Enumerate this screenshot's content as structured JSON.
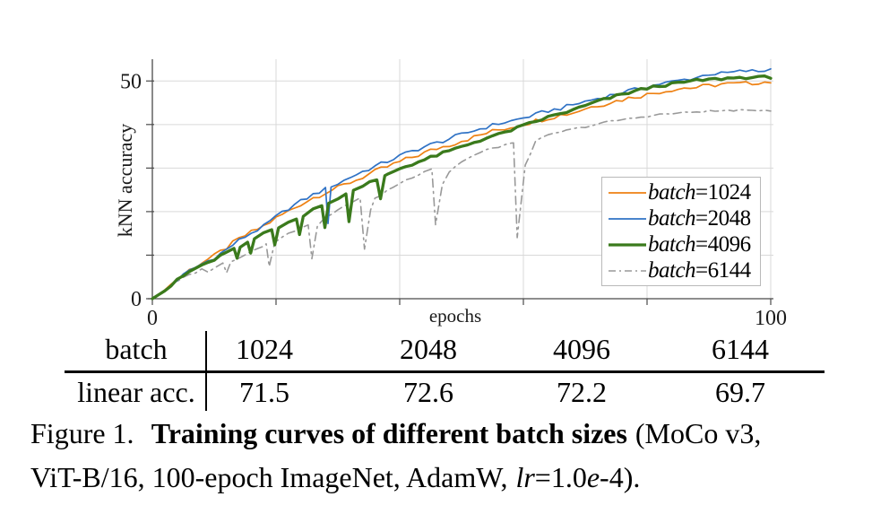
{
  "figure_caption": {
    "label": "Figure 1.",
    "title_bold": "Training curves of different batch sizes",
    "after_title": "(MoCo v3,",
    "line2_prefix": "ViT-B/16, 100-epoch ImageNet, AdamW,",
    "lr_var": "lr",
    "lr_value": "=1.0",
    "e_var": "e",
    "line2_suffix": "-4)."
  },
  "results_table": {
    "header_label": "batch",
    "row_label": "linear acc.",
    "batch_sizes": [
      "1024",
      "2048",
      "4096",
      "6144"
    ],
    "linear_accuracies": [
      "71.5",
      "72.6",
      "72.2",
      "69.7"
    ]
  },
  "chart_data": {
    "type": "line",
    "title": "",
    "xlabel": "epochs",
    "ylabel": "kNN accuracy",
    "xlim": [
      0,
      100
    ],
    "ylim": [
      0,
      55
    ],
    "x_ticks": [
      0,
      20,
      40,
      60,
      80,
      100
    ],
    "x_tick_labels": {
      "0": "0",
      "100": "100"
    },
    "y_ticks": [
      0,
      10,
      20,
      30,
      40,
      50
    ],
    "y_tick_labels": {
      "0": "0",
      "50": "50"
    },
    "grid": true,
    "grid_color": "#d9d9d9",
    "axis_color": "#4a4a4a",
    "legend_position": "lower right",
    "series": [
      {
        "id": "batch-1024",
        "name": "batch=1024",
        "legend_math": "batch",
        "legend_rest": "=1024",
        "color": "#ee8113",
        "line_width": 1.7,
        "dash": null,
        "noise": 0.5,
        "final_knn": 49.8,
        "points": [
          [
            0,
            0
          ],
          [
            2,
            2
          ],
          [
            4,
            4.5
          ],
          [
            6,
            6.6
          ],
          [
            8,
            8.3
          ],
          [
            10,
            9.8
          ],
          [
            12,
            11.7
          ],
          [
            14,
            13.7
          ],
          [
            16,
            15.3
          ],
          [
            18,
            16.7
          ],
          [
            20,
            18.5
          ],
          [
            22,
            20.1
          ],
          [
            24,
            21.7
          ],
          [
            26,
            23.2
          ],
          [
            28,
            24.4
          ],
          [
            30,
            25.5
          ],
          [
            32,
            26.7
          ],
          [
            34,
            27.9
          ],
          [
            36,
            29.2
          ],
          [
            38,
            30.3
          ],
          [
            40,
            31.4
          ],
          [
            42,
            32.5
          ],
          [
            44,
            33.5
          ],
          [
            46,
            34.5
          ],
          [
            48,
            35.3
          ],
          [
            50,
            36.3
          ],
          [
            52,
            37.1
          ],
          [
            54,
            38
          ],
          [
            56,
            38.8
          ],
          [
            58,
            39.4
          ],
          [
            60,
            40.1
          ],
          [
            62,
            40.9
          ],
          [
            64,
            41.5
          ],
          [
            66,
            42.2
          ],
          [
            68,
            42.7
          ],
          [
            70,
            43.7
          ],
          [
            72,
            44.4
          ],
          [
            74,
            45.1
          ],
          [
            76,
            45.7
          ],
          [
            78,
            46.4
          ],
          [
            80,
            46.9
          ],
          [
            82,
            47.5
          ],
          [
            84,
            48
          ],
          [
            86,
            48.4
          ],
          [
            88,
            48.5
          ],
          [
            90,
            48.9
          ],
          [
            92,
            49.3
          ],
          [
            94,
            49.3
          ],
          [
            96,
            49.4
          ],
          [
            98,
            49.7
          ],
          [
            100,
            49.8
          ]
        ]
      },
      {
        "id": "batch-2048",
        "name": "batch=2048",
        "legend_math": "batch",
        "legend_rest": "=2048",
        "color": "#2f72c5",
        "line_width": 1.7,
        "dash": null,
        "noise": 0.42,
        "final_knn": 52.7,
        "points": [
          [
            0,
            0
          ],
          [
            2,
            1.9
          ],
          [
            4,
            4.3
          ],
          [
            6,
            6.4
          ],
          [
            8,
            8
          ],
          [
            10,
            9.4
          ],
          [
            12,
            11.3
          ],
          [
            14,
            13.4
          ],
          [
            16,
            15.1
          ],
          [
            18,
            16.6
          ],
          [
            20,
            18.8
          ],
          [
            22,
            20.7
          ],
          [
            24,
            22.4
          ],
          [
            26,
            23.9
          ],
          [
            28,
            25.2
          ],
          [
            28.4,
            17.2
          ],
          [
            28.9,
            25.5
          ],
          [
            30,
            26.4
          ],
          [
            32,
            27.9
          ],
          [
            34,
            29.2
          ],
          [
            36,
            30.4
          ],
          [
            38,
            31.5
          ],
          [
            40,
            32.8
          ],
          [
            42,
            33.9
          ],
          [
            44,
            34.9
          ],
          [
            46,
            35.8
          ],
          [
            48,
            36.7
          ],
          [
            50,
            37.7
          ],
          [
            52,
            38.6
          ],
          [
            54,
            39.4
          ],
          [
            56,
            40.2
          ],
          [
            58,
            40.8
          ],
          [
            60,
            41.5
          ],
          [
            62,
            42.3
          ],
          [
            64,
            43.1
          ],
          [
            66,
            43.7
          ],
          [
            68,
            44.5
          ],
          [
            70,
            45.3
          ],
          [
            72,
            46
          ],
          [
            74,
            46.7
          ],
          [
            76,
            47.4
          ],
          [
            78,
            48
          ],
          [
            80,
            48.7
          ],
          [
            82,
            49.3
          ],
          [
            84,
            49.8
          ],
          [
            86,
            50.3
          ],
          [
            88,
            50.8
          ],
          [
            90,
            51.6
          ],
          [
            92,
            51.7
          ],
          [
            94,
            52
          ],
          [
            96,
            52.3
          ],
          [
            98,
            52.2
          ],
          [
            100,
            52.7
          ]
        ]
      },
      {
        "id": "batch-4096",
        "name": "batch=4096",
        "legend_math": "batch",
        "legend_rest": "=4096",
        "color": "#3a7a1c",
        "line_width": 3.3,
        "dash": null,
        "noise": 0.3,
        "final_knn": 50.9,
        "points": [
          [
            0,
            0
          ],
          [
            2,
            1.8
          ],
          [
            4,
            4.2
          ],
          [
            6,
            6.2
          ],
          [
            8,
            7.7
          ],
          [
            10,
            8.9
          ],
          [
            12,
            10.5
          ],
          [
            13.2,
            11.4
          ],
          [
            13.7,
            9
          ],
          [
            14.2,
            12.1
          ],
          [
            15.4,
            13.2
          ],
          [
            15.9,
            10.2
          ],
          [
            16.5,
            13.6
          ],
          [
            18,
            14.9
          ],
          [
            19.3,
            15.7
          ],
          [
            19.8,
            12.1
          ],
          [
            20.4,
            16.3
          ],
          [
            22,
            17.8
          ],
          [
            23.3,
            18.5
          ],
          [
            23.8,
            14.7
          ],
          [
            24.4,
            19.2
          ],
          [
            26,
            20.6
          ],
          [
            27.4,
            21.3
          ],
          [
            27.9,
            16.5
          ],
          [
            28.5,
            21.9
          ],
          [
            30,
            23.2
          ],
          [
            31.3,
            24
          ],
          [
            31.8,
            17.9
          ],
          [
            32.5,
            24.7
          ],
          [
            34,
            26
          ],
          [
            36.3,
            27.5
          ],
          [
            36.9,
            22.7
          ],
          [
            37.6,
            28.1
          ],
          [
            38,
            28.6
          ],
          [
            40,
            29.9
          ],
          [
            42,
            30.9
          ],
          [
            44,
            31.9
          ],
          [
            46,
            32.9
          ],
          [
            48,
            33.9
          ],
          [
            50,
            34.9
          ],
          [
            52,
            35.9
          ],
          [
            54,
            36.9
          ],
          [
            56,
            37.7
          ],
          [
            58,
            38.7
          ],
          [
            60,
            39.7
          ],
          [
            62,
            40.7
          ],
          [
            64,
            41.7
          ],
          [
            66,
            42.5
          ],
          [
            68,
            43.3
          ],
          [
            70,
            44.3
          ],
          [
            72,
            45.3
          ],
          [
            74,
            46.1
          ],
          [
            76,
            46.9
          ],
          [
            78,
            47.7
          ],
          [
            80,
            48.3
          ],
          [
            82,
            48.9
          ],
          [
            84,
            49.3
          ],
          [
            86,
            49.7
          ],
          [
            88,
            50.1
          ],
          [
            90,
            50.3
          ],
          [
            92,
            50.5
          ],
          [
            94,
            50.7
          ],
          [
            96,
            50.8
          ],
          [
            98,
            50.8
          ],
          [
            100,
            50.9
          ]
        ]
      },
      {
        "id": "batch-6144",
        "name": "batch=6144",
        "legend_math": "batch",
        "legend_rest": "=6144",
        "color": "#999999",
        "line_width": 1.6,
        "dash": "9 5 2 5",
        "noise": 0.22,
        "final_knn": 43.3,
        "points": [
          [
            0,
            0
          ],
          [
            2,
            1.7
          ],
          [
            4,
            3.9
          ],
          [
            6,
            5.5
          ],
          [
            8,
            6.7
          ],
          [
            9,
            6.3
          ],
          [
            10,
            7.1
          ],
          [
            11.4,
            8
          ],
          [
            12,
            5.9
          ],
          [
            12.7,
            8.3
          ],
          [
            14,
            9.5
          ],
          [
            16,
            10.9
          ],
          [
            18,
            12.2
          ],
          [
            18.4,
            12.4
          ],
          [
            18.9,
            7.3
          ],
          [
            19.7,
            12.2
          ],
          [
            20,
            13.3
          ],
          [
            22,
            14.9
          ],
          [
            24,
            16.4
          ],
          [
            25.2,
            17.1
          ],
          [
            25.8,
            9.2
          ],
          [
            26.7,
            16.6
          ],
          [
            28,
            18.6
          ],
          [
            30,
            20.3
          ],
          [
            32,
            21.9
          ],
          [
            33.6,
            23
          ],
          [
            34.3,
            11.6
          ],
          [
            35.3,
            20.6
          ],
          [
            36,
            22.9
          ],
          [
            38,
            24.9
          ],
          [
            40,
            26.5
          ],
          [
            42,
            27.9
          ],
          [
            44,
            29.3
          ],
          [
            45.2,
            30
          ],
          [
            45.8,
            17
          ],
          [
            46.9,
            26.4
          ],
          [
            48,
            29.1
          ],
          [
            50,
            31.5
          ],
          [
            52,
            32.9
          ],
          [
            54,
            34.1
          ],
          [
            56,
            34.9
          ],
          [
            58,
            35.7
          ],
          [
            58.4,
            35.8
          ],
          [
            59,
            13.8
          ],
          [
            60.3,
            30.8
          ],
          [
            62,
            36.1
          ],
          [
            64,
            37.5
          ],
          [
            66,
            38.3
          ],
          [
            68,
            38.9
          ],
          [
            70,
            39.5
          ],
          [
            72,
            40.1
          ],
          [
            74,
            40.7
          ],
          [
            76,
            41.1
          ],
          [
            78,
            41.5
          ],
          [
            80,
            41.9
          ],
          [
            82,
            42.3
          ],
          [
            84,
            42.5
          ],
          [
            86,
            42.7
          ],
          [
            88,
            42.9
          ],
          [
            90,
            43.1
          ],
          [
            92,
            43.1
          ],
          [
            94,
            43.3
          ],
          [
            96,
            43.1
          ],
          [
            98,
            43.3
          ],
          [
            100,
            43.3
          ]
        ]
      }
    ]
  }
}
